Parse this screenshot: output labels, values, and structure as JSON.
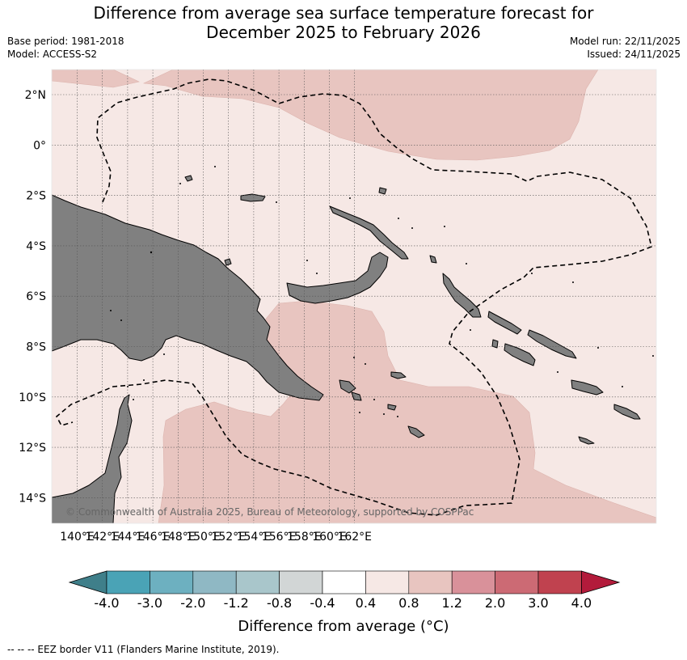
{
  "title_line1": "Difference from average sea surface temperature forecast for",
  "title_line2": "December 2025 to February 2026",
  "base_period": "Base period: 1981-2018",
  "model": "Model: ACCESS-S2",
  "model_run": "Model run: 22/11/2025",
  "issued": "Issued: 24/11/2025",
  "copyright": "© Commonwealth of Australia 2025, Bureau of Meteorology, supported by COSPPac",
  "lon_ticks": [
    "140°E",
    "142°E",
    "144°E",
    "146°E",
    "148°E",
    "150°E",
    "152°E",
    "154°E",
    "156°E",
    "158°E",
    "160°E",
    "162°E"
  ],
  "lat_ticks": [
    "2°N",
    "0°",
    "2°S",
    "4°S",
    "6°S",
    "8°S",
    "10°S",
    "12°S",
    "14°S"
  ],
  "colorbar": {
    "title": "Difference from average (°C)",
    "tick_labels": [
      "-4.0",
      "-3.0",
      "-2.0",
      "-1.2",
      "-0.8",
      "-0.4",
      "0.4",
      "0.8",
      "1.2",
      "2.0",
      "3.0",
      "4.0"
    ],
    "colors": [
      "#3f7f8a",
      "#4aa3b6",
      "#6db0c0",
      "#8fb8c4",
      "#a9c6cb",
      "#d2d6d6",
      "#ffffff",
      "#f6e8e5",
      "#e8c5c0",
      "#d9919a",
      "#cc6a74",
      "#c0424f",
      "#b31b3b"
    ],
    "extend": "both"
  },
  "footnote": "--  --  -- EEZ border V11 (Flanders Marine Institute, 2019).",
  "colors": {
    "sea_light": "#f6e8e5",
    "sea_warm": "#e8c5c0",
    "land": "#808080",
    "coast": "#000000"
  }
}
